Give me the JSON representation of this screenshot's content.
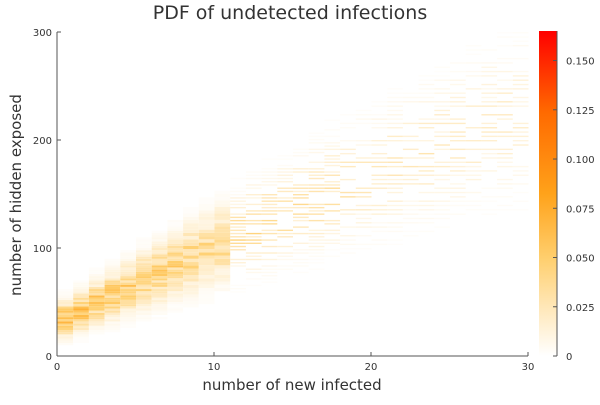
{
  "chart_data": {
    "type": "heatmap",
    "title": "PDF of undetected infections",
    "xlabel": "number of new infected",
    "ylabel": "number of hidden exposed",
    "xlim": [
      0,
      30
    ],
    "ylim": [
      0,
      300
    ],
    "xticks": [
      0,
      10,
      20,
      30
    ],
    "yticks": [
      0,
      100,
      200,
      300
    ],
    "grid": false,
    "colorbar": {
      "range": [
        0,
        0.165
      ],
      "ticks": [
        0,
        0.025,
        0.05,
        0.075,
        0.1,
        0.125,
        0.15
      ],
      "tick_labels": [
        "0",
        "0.025",
        "0.050",
        "0.075",
        "0.100",
        "0.125",
        "0.150"
      ],
      "colors": [
        "#ffffff",
        "#ffd37a",
        "#ffa21a",
        "#ff6a00",
        "#ff0000"
      ]
    },
    "density_model": {
      "description": "approximate per-column distribution of hidden exposed given new infected",
      "mean_at_x0": 30,
      "mean_slope": 7.2,
      "mean_curvature": -0.025,
      "sd_at_x0": 9,
      "sd_slope": 1.05,
      "peak_value_at_x0": 0.055,
      "peak_decay": 0.055
    }
  }
}
